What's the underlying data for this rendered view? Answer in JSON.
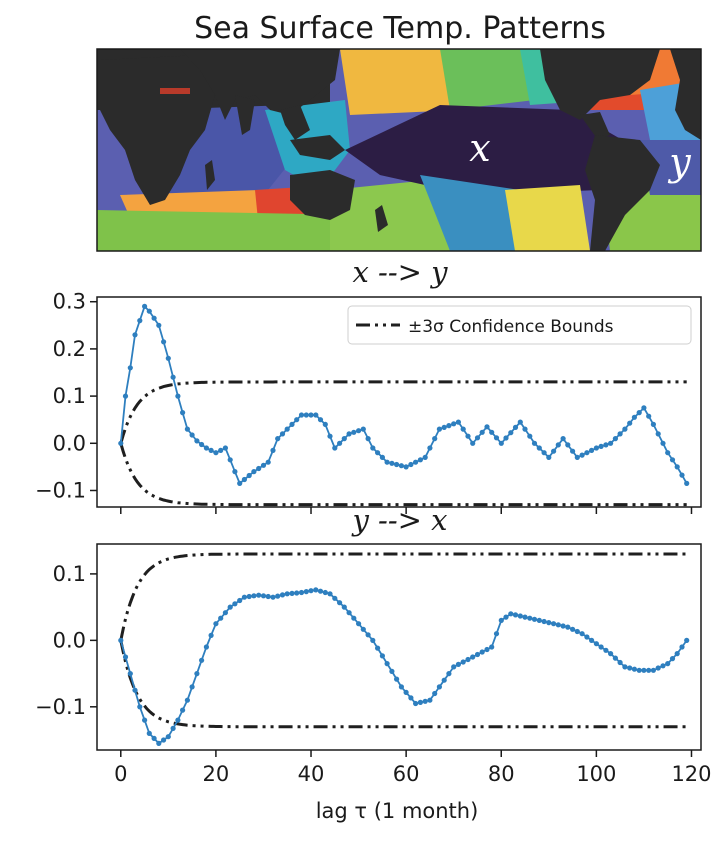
{
  "map": {
    "title": "Sea Surface Temp. Patterns",
    "label_x": "x",
    "label_y": "y",
    "colors": {
      "land": "#2b2b2b",
      "x_region": "#2c1d44",
      "y_region": "#4e5aa8",
      "teal": "#2ea8c4",
      "green": "#7fc24a",
      "yellow": "#e8d84a",
      "orange": "#f4a340",
      "red": "#e0452f",
      "blue": "#4a56a8",
      "skyblue": "#4da0d8"
    }
  },
  "chart_data": [
    {
      "type": "line",
      "title": "x --> y",
      "xlim": [
        -5,
        122
      ],
      "ylim": [
        -0.135,
        0.31
      ],
      "yticks": [
        -0.1,
        0.0,
        0.1,
        0.2,
        0.3
      ],
      "ytick_labels": [
        "−0.1",
        "0.0",
        "0.1",
        "0.2",
        "0.3"
      ],
      "show_xtick_labels": false,
      "legend": {
        "label": "±3σ Confidence Bounds",
        "placement": "top-right"
      },
      "bound": 0.13,
      "series": [
        {
          "style": "line+markers",
          "color": "#2e7fbf",
          "keypoints": [
            [
              0,
              0
            ],
            [
              1,
              0.1
            ],
            [
              2,
              0.16
            ],
            [
              3,
              0.23
            ],
            [
              5,
              0.29
            ],
            [
              6,
              0.28
            ],
            [
              8,
              0.25
            ],
            [
              10,
              0.18
            ],
            [
              12,
              0.1
            ],
            [
              14,
              0.03
            ],
            [
              16,
              0.005
            ],
            [
              18,
              -0.01
            ],
            [
              20,
              -0.02
            ],
            [
              22,
              -0.01
            ],
            [
              25,
              -0.085
            ],
            [
              28,
              -0.06
            ],
            [
              31,
              -0.04
            ],
            [
              33,
              0.01
            ],
            [
              35,
              0.03
            ],
            [
              38,
              0.06
            ],
            [
              41,
              0.06
            ],
            [
              43,
              0.04
            ],
            [
              45,
              -0.01
            ],
            [
              48,
              0.02
            ],
            [
              51,
              0.03
            ],
            [
              53,
              -0.01
            ],
            [
              56,
              -0.04
            ],
            [
              60,
              -0.05
            ],
            [
              64,
              -0.03
            ],
            [
              67,
              0.03
            ],
            [
              71,
              0.045
            ],
            [
              74,
              0.0
            ],
            [
              77,
              0.035
            ],
            [
              80,
              0.0
            ],
            [
              84,
              0.045
            ],
            [
              87,
              0.0
            ],
            [
              90,
              -0.03
            ],
            [
              93,
              0.01
            ],
            [
              96,
              -0.03
            ],
            [
              100,
              -0.01
            ],
            [
              103,
              0.0
            ],
            [
              106,
              0.03
            ],
            [
              108,
              0.055
            ],
            [
              110,
              0.075
            ],
            [
              112,
              0.04
            ],
            [
              115,
              -0.02
            ],
            [
              117,
              -0.05
            ],
            [
              119,
              -0.085
            ]
          ]
        }
      ]
    },
    {
      "type": "line",
      "title": "y --> x",
      "xlim": [
        -5,
        122
      ],
      "ylim": [
        -0.165,
        0.145
      ],
      "yticks": [
        -0.1,
        0.0,
        0.1
      ],
      "ytick_labels": [
        "−0.1",
        "0.0",
        "0.1"
      ],
      "xticks": [
        0,
        20,
        40,
        60,
        80,
        100,
        120
      ],
      "xtick_labels": [
        "0",
        "20",
        "40",
        "60",
        "80",
        "100",
        "120"
      ],
      "xlabel": "lag τ (1 month)",
      "bound": 0.13,
      "series": [
        {
          "style": "line+markers",
          "color": "#2e7fbf",
          "keypoints": [
            [
              0,
              0
            ],
            [
              2,
              -0.05
            ],
            [
              4,
              -0.1
            ],
            [
              6,
              -0.14
            ],
            [
              8,
              -0.155
            ],
            [
              10,
              -0.145
            ],
            [
              12,
              -0.12
            ],
            [
              14,
              -0.09
            ],
            [
              16,
              -0.05
            ],
            [
              18,
              -0.01
            ],
            [
              20,
              0.025
            ],
            [
              23,
              0.05
            ],
            [
              26,
              0.065
            ],
            [
              29,
              0.068
            ],
            [
              32,
              0.065
            ],
            [
              35,
              0.07
            ],
            [
              38,
              0.072
            ],
            [
              41,
              0.076
            ],
            [
              44,
              0.07
            ],
            [
              47,
              0.05
            ],
            [
              50,
              0.025
            ],
            [
              53,
              0.0
            ],
            [
              56,
              -0.035
            ],
            [
              59,
              -0.07
            ],
            [
              62,
              -0.095
            ],
            [
              65,
              -0.09
            ],
            [
              67,
              -0.07
            ],
            [
              70,
              -0.04
            ],
            [
              74,
              -0.025
            ],
            [
              78,
              -0.01
            ],
            [
              80,
              0.03
            ],
            [
              82,
              0.04
            ],
            [
              85,
              0.035
            ],
            [
              88,
              0.03
            ],
            [
              91,
              0.025
            ],
            [
              94,
              0.02
            ],
            [
              97,
              0.01
            ],
            [
              100,
              -0.005
            ],
            [
              103,
              -0.02
            ],
            [
              106,
              -0.04
            ],
            [
              109,
              -0.045
            ],
            [
              112,
              -0.045
            ],
            [
              115,
              -0.035
            ],
            [
              117,
              -0.02
            ],
            [
              119,
              0.0
            ]
          ]
        }
      ]
    }
  ]
}
